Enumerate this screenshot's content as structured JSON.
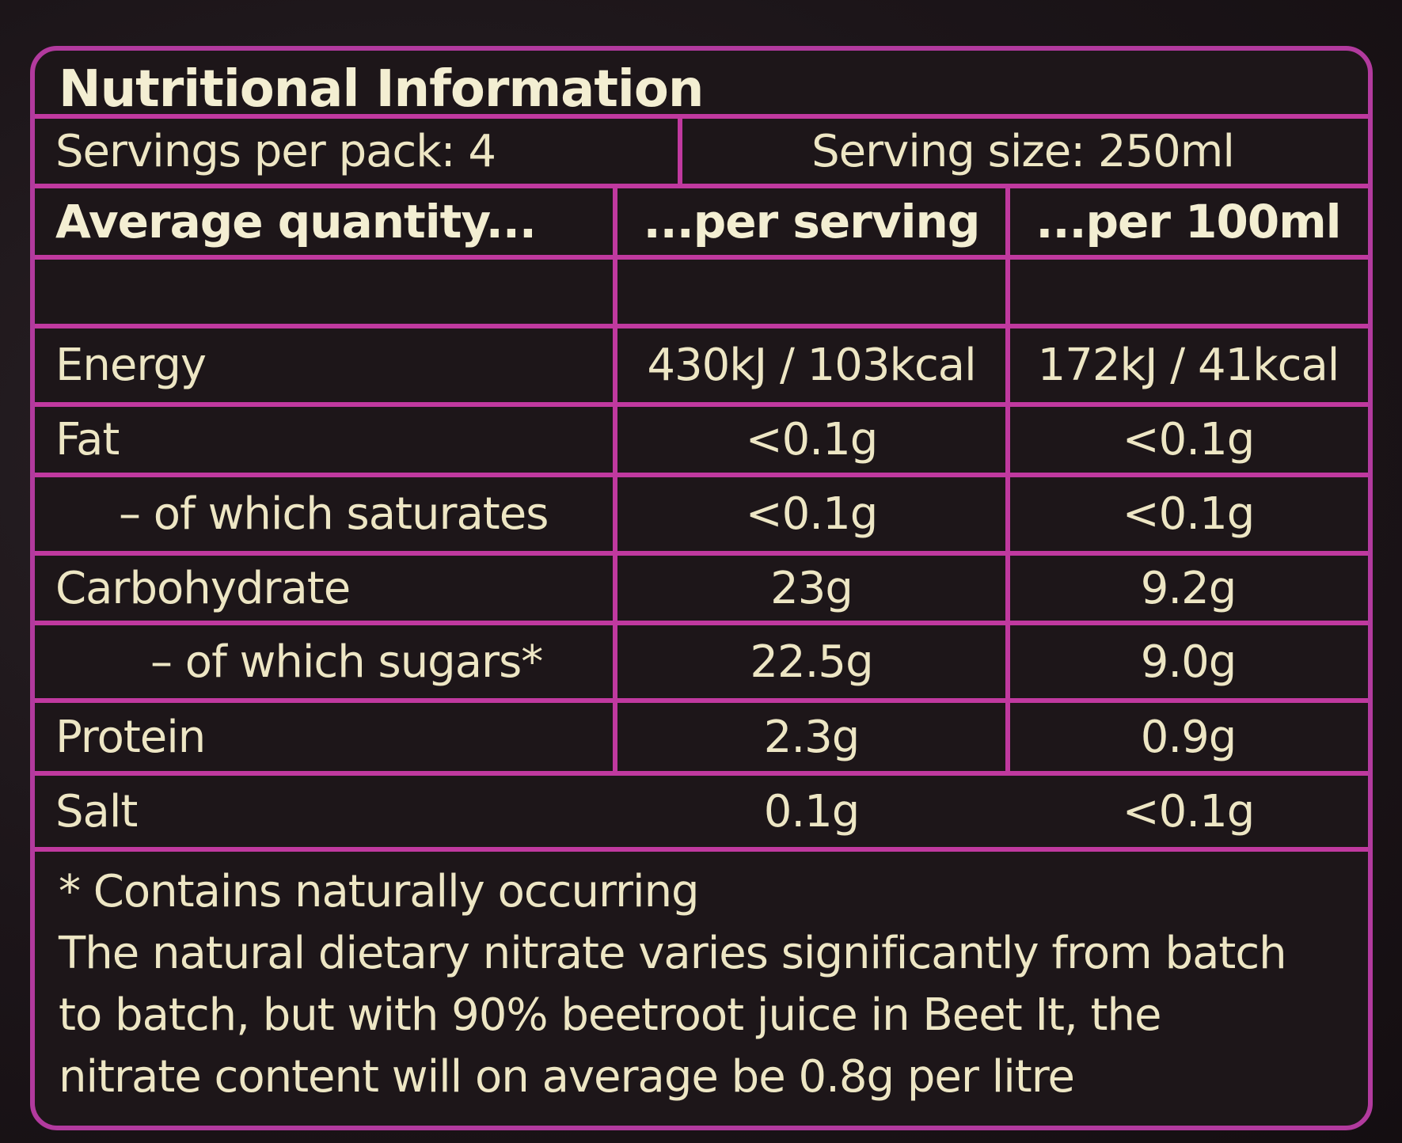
{
  "label": {
    "title": "Nutritional Information",
    "servings_per_pack": "Servings per pack: 4",
    "serving_size": "Serving size: 250ml",
    "headers": {
      "quantity": "Average quantity...",
      "per_serving": "...per serving",
      "per_100ml": "...per 100ml"
    },
    "rows": [
      {
        "name": "Energy",
        "per_serving": "430kJ / 103kcal",
        "per_100ml": "172kJ / 41kcal"
      },
      {
        "name": "Fat",
        "per_serving": "<0.1g",
        "per_100ml": "<0.1g"
      },
      {
        "name": "– of which saturates",
        "per_serving": "<0.1g",
        "per_100ml": "<0.1g"
      },
      {
        "name": "Carbohydrate",
        "per_serving": "23g",
        "per_100ml": "9.2g"
      },
      {
        "name": "– of which sugars*",
        "per_serving": "22.5g",
        "per_100ml": "9.0g"
      },
      {
        "name": "Protein",
        "per_serving": "2.3g",
        "per_100ml": "0.9g"
      },
      {
        "name": "Salt",
        "per_serving": "0.1g",
        "per_100ml": "<0.1g"
      }
    ],
    "footnote": {
      "line1": "* Contains naturally occurring",
      "line2": "The natural dietary nitrate varies significantly from batch",
      "line3": "to batch, but with 90% beetroot juice in Beet It, the",
      "line4": "nitrate content will on average be 0.8g per litre"
    }
  },
  "colors": {
    "border": "#c0399f",
    "background": "#1d1619",
    "text": "#ede6c4"
  }
}
